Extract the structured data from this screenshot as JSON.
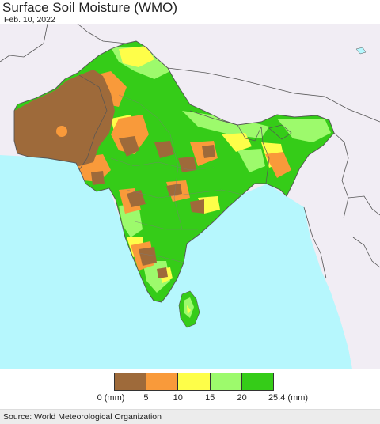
{
  "title": "Surface Soil Moisture (WMO)",
  "date": "Feb. 10, 2022",
  "colors": {
    "sea": "#b6f7fd",
    "outside_land": "#f1edf4",
    "border": "#555555",
    "very_dry": "#9e6a3a",
    "dry": "#f99a3a",
    "moderate": "#fefe49",
    "moist": "#9dfa6c",
    "wet": "#35cc18"
  },
  "legend": {
    "bins": [
      {
        "from": 0,
        "to": 5,
        "color": "#9e6a3a"
      },
      {
        "from": 5,
        "to": 10,
        "color": "#f99a3a"
      },
      {
        "from": 10,
        "to": 15,
        "color": "#fefe49"
      },
      {
        "from": 15,
        "to": 20,
        "color": "#9dfa6c"
      },
      {
        "from": 20,
        "to": 25.4,
        "color": "#35cc18"
      }
    ],
    "tick_labels": [
      "0 (mm)",
      "5",
      "10",
      "15",
      "20",
      "25.4 (mm)"
    ]
  },
  "source": "Source: World Meteorological Organization"
}
